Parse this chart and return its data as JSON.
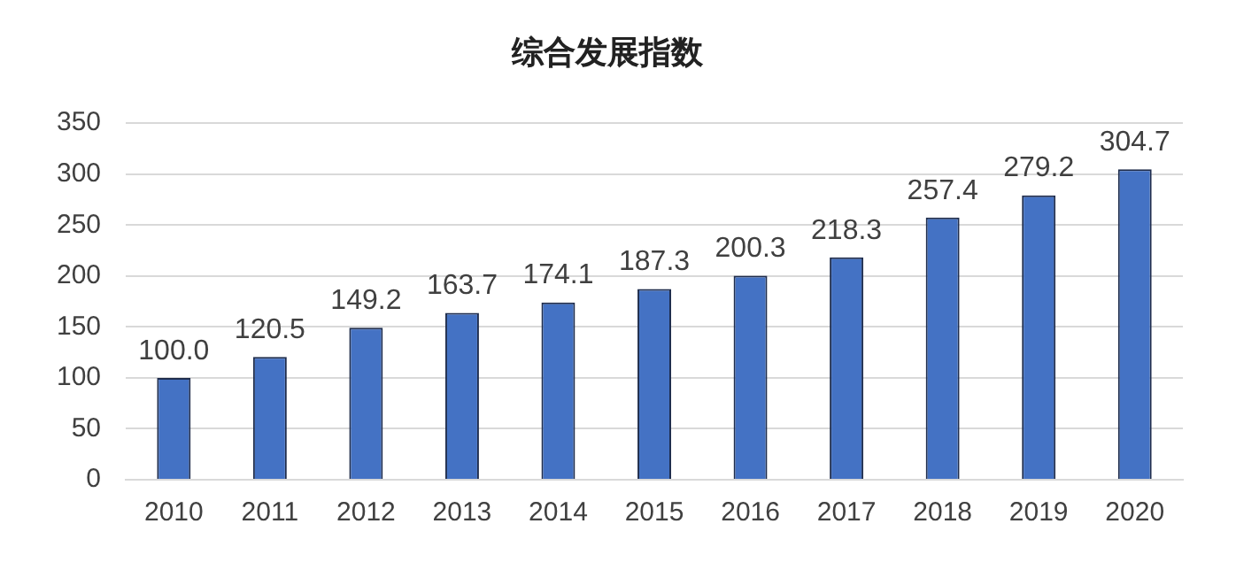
{
  "chart_data": {
    "type": "bar",
    "title": "综合发展指数",
    "categories": [
      "2010",
      "2011",
      "2012",
      "2013",
      "2014",
      "2015",
      "2016",
      "2017",
      "2018",
      "2019",
      "2020"
    ],
    "values": [
      100.0,
      120.5,
      149.2,
      163.7,
      174.1,
      187.3,
      200.3,
      218.3,
      257.4,
      279.2,
      304.7
    ],
    "value_labels": [
      "100.0",
      "120.5",
      "149.2",
      "163.7",
      "174.1",
      "187.3",
      "200.3",
      "218.3",
      "257.4",
      "279.2",
      "304.7"
    ],
    "color": "#4472c4",
    "ylim": [
      0,
      350
    ],
    "yticks": [
      0,
      50,
      100,
      150,
      200,
      250,
      300,
      350
    ],
    "grid": "y"
  }
}
